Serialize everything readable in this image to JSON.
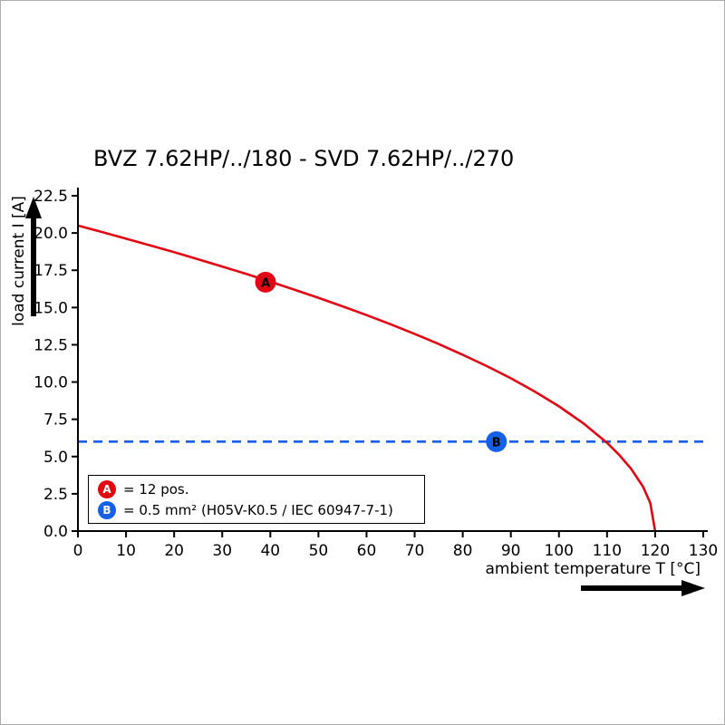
{
  "page": {
    "background": "#ffffff",
    "border_color": "#adadad"
  },
  "colors": {
    "curve_red": "#e30613",
    "line_blue": "#1560e8",
    "axis_black": "#000000"
  },
  "chart_data": {
    "type": "line",
    "title": "BVZ 7.62HP/../180 - SVD 7.62HP/../270",
    "xlabel": "ambient temperature T [°C]",
    "ylabel": "load current I [A]",
    "xlim": [
      0,
      130
    ],
    "ylim": [
      0,
      22.5
    ],
    "x_ticks": [
      0,
      10,
      20,
      30,
      40,
      50,
      60,
      70,
      80,
      90,
      100,
      110,
      120,
      130
    ],
    "y_ticks": [
      0.0,
      2.5,
      5.0,
      7.5,
      10.0,
      12.5,
      15.0,
      17.5,
      20.0,
      22.5
    ],
    "y_tick_decimals": 1,
    "grid": false,
    "legend_position": "bottom-left-inside",
    "series": [
      {
        "name": "derating-curve",
        "color": "#e30613",
        "style": "solid",
        "points": [
          [
            0,
            20.5
          ],
          [
            5,
            20.07
          ],
          [
            10,
            19.62
          ],
          [
            15,
            19.17
          ],
          [
            20,
            18.71
          ],
          [
            25,
            18.24
          ],
          [
            30,
            17.75
          ],
          [
            35,
            17.25
          ],
          [
            40,
            16.73
          ],
          [
            45,
            16.2
          ],
          [
            50,
            15.65
          ],
          [
            55,
            15.08
          ],
          [
            60,
            14.49
          ],
          [
            65,
            13.88
          ],
          [
            70,
            13.23
          ],
          [
            75,
            12.55
          ],
          [
            80,
            11.83
          ],
          [
            85,
            11.07
          ],
          [
            90,
            10.25
          ],
          [
            95,
            9.36
          ],
          [
            100,
            8.37
          ],
          [
            105,
            7.25
          ],
          [
            110,
            5.92
          ],
          [
            112.5,
            5.12
          ],
          [
            115,
            4.18
          ],
          [
            117.5,
            2.96
          ],
          [
            119,
            1.87
          ],
          [
            120,
            0
          ]
        ]
      },
      {
        "name": "rated-current-line",
        "color": "#1560e8",
        "style": "dashed",
        "points": [
          [
            0,
            6.0
          ],
          [
            130,
            6.0
          ]
        ]
      }
    ],
    "markers": [
      {
        "label": "A",
        "color": "#e30613",
        "x": 39,
        "y": 16.7
      },
      {
        "label": "B",
        "color": "#1560e8",
        "x": 87,
        "y": 6.0
      }
    ],
    "legend": [
      {
        "label": "A",
        "color": "#e30613",
        "text": "= 12 pos."
      },
      {
        "label": "B",
        "color": "#1560e8",
        "text": "= 0.5 mm² (H05V-K0.5 / IEC 60947-7-1)"
      }
    ]
  }
}
